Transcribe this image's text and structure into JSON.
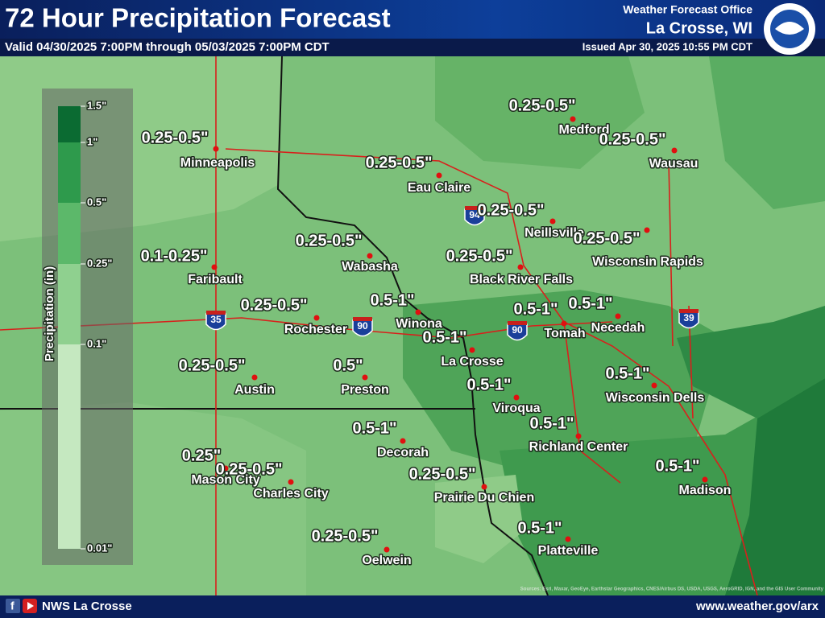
{
  "header": {
    "title": "72 Hour Precipitation Forecast",
    "valid": "Valid 04/30/2025 7:00PM through 05/03/2025 7:00PM CDT",
    "office": "Weather Forecast Office",
    "location": "La Crosse, WI",
    "issued": "Issued Apr 30, 2025 10:55 PM CDT"
  },
  "legend": {
    "title": "Precipitation (in)",
    "labels": [
      "1.5\"",
      "1\"",
      "0.5\"",
      "0.25\"",
      "0.1\"",
      "0.01\""
    ]
  },
  "cities": [
    {
      "name": "Minneapolis",
      "amount": "0.25-0.5\""
    },
    {
      "name": "Medford",
      "amount": "0.25-0.5\""
    },
    {
      "name": "Wausau",
      "amount": "0.25-0.5\""
    },
    {
      "name": "Eau Claire",
      "amount": "0.25-0.5\""
    },
    {
      "name": "Neillsville",
      "amount": "0.25-0.5\""
    },
    {
      "name": "Wisconsin Rapids",
      "amount": "0.25-0.5\""
    },
    {
      "name": "Wabasha",
      "amount": "0.25-0.5\""
    },
    {
      "name": "Faribault",
      "amount": "0.1-0.25\""
    },
    {
      "name": "Black River Falls",
      "amount": "0.25-0.5\""
    },
    {
      "name": "Rochester",
      "amount": "0.25-0.5\""
    },
    {
      "name": "Winona",
      "amount": "0.5-1\""
    },
    {
      "name": "Tomah",
      "amount": "0.5-1\""
    },
    {
      "name": "Necedah",
      "amount": "0.5-1\""
    },
    {
      "name": "La Crosse",
      "amount": "0.5-1\""
    },
    {
      "name": "Austin",
      "amount": "0.25-0.5\""
    },
    {
      "name": "Preston",
      "amount": "0.5\""
    },
    {
      "name": "Wisconsin Dells",
      "amount": "0.5-1\""
    },
    {
      "name": "Viroqua",
      "amount": "0.5-1\""
    },
    {
      "name": "Decorah",
      "amount": "0.5-1\""
    },
    {
      "name": "Richland Center",
      "amount": "0.5-1\""
    },
    {
      "name": "Mason City",
      "amount": "0.25\""
    },
    {
      "name": "Charles City",
      "amount": "0.25-0.5\""
    },
    {
      "name": "Prairie Du Chien",
      "amount": "0.25-0.5\""
    },
    {
      "name": "Madison",
      "amount": "0.5-1\""
    },
    {
      "name": "Platteville",
      "amount": "0.5-1\""
    },
    {
      "name": "Oelwein",
      "amount": "0.25-0.5\""
    }
  ],
  "highways": [
    "35",
    "90",
    "94",
    "90",
    "39"
  ],
  "footer": {
    "name": "NWS La Crosse",
    "url": "www.weather.gov/arx",
    "credits": "Sources: Esri, Maxar, GeoEye, Earthstar Geographics, CNES/Airbus DS, USDA, USGS, AeroGRID, IGN, and the GIS User Community"
  }
}
